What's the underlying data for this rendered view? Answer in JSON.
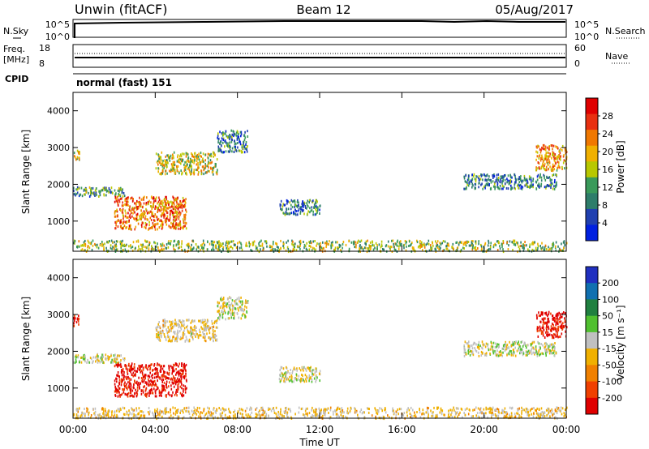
{
  "header": {
    "station": "Unwin (fitACF)",
    "beam": "Beam 12",
    "date": "05/Aug/2017"
  },
  "noise_panel": {
    "left_label": "N.Sky",
    "right_label": "N.Search",
    "left_ticks": [
      "10^5",
      "10^0"
    ],
    "right_ticks": [
      "10^5",
      "10^0"
    ]
  },
  "freq_panel": {
    "left_label_line1": "Freq.",
    "left_label_line2": "[MHz]",
    "right_label": "Nave",
    "left_ticks": [
      "18",
      "8"
    ],
    "right_ticks": [
      "60",
      "0"
    ]
  },
  "cpid_panel": {
    "label": "CPID",
    "text": "normal (fast) 151"
  },
  "chart_data": [
    {
      "type": "heatmap",
      "title": "",
      "xlabel": "",
      "ylabel": "Slant Range [km]",
      "xlim": [
        0,
        24
      ],
      "ylim": [
        180,
        4500
      ],
      "x_ticks": [
        "00:00",
        "04:00",
        "08:00",
        "12:00",
        "16:00",
        "20:00",
        "00:00"
      ],
      "y_ticks": [
        "1000",
        "2000",
        "3000",
        "4000"
      ],
      "colorbar": {
        "label": "Power [dB]",
        "ticks": [
          "4",
          "8",
          "12",
          "16",
          "20",
          "24",
          "28"
        ],
        "range": [
          0,
          30
        ],
        "colors": [
          "#0020e0",
          "#2040b0",
          "#2e7d6a",
          "#3a9a5a",
          "#b8c800",
          "#f0b000",
          "#f07800",
          "#e83010",
          "#e00000"
        ]
      },
      "echo_regions": [
        {
          "t_start": 0.0,
          "t_end": 2.5,
          "range_start": 1700,
          "range_end": 1950,
          "value": 10
        },
        {
          "t_start": 0.0,
          "t_end": 0.3,
          "range_start": 2700,
          "range_end": 3000,
          "value": 18
        },
        {
          "t_start": 2.0,
          "t_end": 5.5,
          "range_start": 800,
          "range_end": 1700,
          "value": 22
        },
        {
          "t_start": 4.0,
          "t_end": 7.0,
          "range_start": 2300,
          "range_end": 2900,
          "value": 16
        },
        {
          "t_start": 7.0,
          "t_end": 8.5,
          "range_start": 2900,
          "range_end": 3500,
          "value": 8
        },
        {
          "t_start": 10.0,
          "t_end": 12.0,
          "range_start": 1200,
          "range_end": 1600,
          "value": 8
        },
        {
          "t_start": 19.0,
          "t_end": 23.5,
          "range_start": 1900,
          "range_end": 2300,
          "value": 8
        },
        {
          "t_start": 22.5,
          "t_end": 24.0,
          "range_start": 2400,
          "range_end": 3100,
          "value": 20
        },
        {
          "t_start": 0.0,
          "t_end": 24.0,
          "range_start": 200,
          "range_end": 500,
          "value": 14
        }
      ]
    },
    {
      "type": "heatmap",
      "title": "",
      "xlabel": "Time UT",
      "ylabel": "Slant Range [km]",
      "xlim": [
        0,
        24
      ],
      "ylim": [
        180,
        4500
      ],
      "x_ticks": [
        "00:00",
        "04:00",
        "08:00",
        "12:00",
        "16:00",
        "20:00",
        "00:00"
      ],
      "y_ticks": [
        "1000",
        "2000",
        "3000",
        "4000"
      ],
      "colorbar": {
        "label": "Velocity [m s⁻¹]",
        "ticks": [
          "200",
          "100",
          "50",
          "15",
          "-15",
          "-50",
          "-100",
          "-200"
        ],
        "range": [
          -250,
          250
        ],
        "colors": [
          "#2030c0",
          "#1070b0",
          "#208040",
          "#50c030",
          "#c0c0c0",
          "#f0b000",
          "#f08000",
          "#f04000",
          "#e00000"
        ]
      },
      "echo_regions": [
        {
          "t_start": 0.0,
          "t_end": 2.5,
          "range_start": 1700,
          "range_end": 1950,
          "value": 0
        },
        {
          "t_start": 0.0,
          "t_end": 0.3,
          "range_start": 2700,
          "range_end": 3000,
          "value": -200
        },
        {
          "t_start": 2.0,
          "t_end": 5.5,
          "range_start": 800,
          "range_end": 1700,
          "value": -220
        },
        {
          "t_start": 4.0,
          "t_end": 7.0,
          "range_start": 2300,
          "range_end": 2900,
          "value": -30
        },
        {
          "t_start": 7.0,
          "t_end": 8.5,
          "range_start": 2900,
          "range_end": 3500,
          "value": 0
        },
        {
          "t_start": 10.0,
          "t_end": 12.0,
          "range_start": 1200,
          "range_end": 1600,
          "value": 0
        },
        {
          "t_start": 19.0,
          "t_end": 23.5,
          "range_start": 1900,
          "range_end": 2300,
          "value": 0
        },
        {
          "t_start": 22.5,
          "t_end": 24.0,
          "range_start": 2400,
          "range_end": 3100,
          "value": -220
        },
        {
          "t_start": 0.0,
          "t_end": 24.0,
          "range_start": 200,
          "range_end": 500,
          "value": -40
        }
      ]
    }
  ]
}
